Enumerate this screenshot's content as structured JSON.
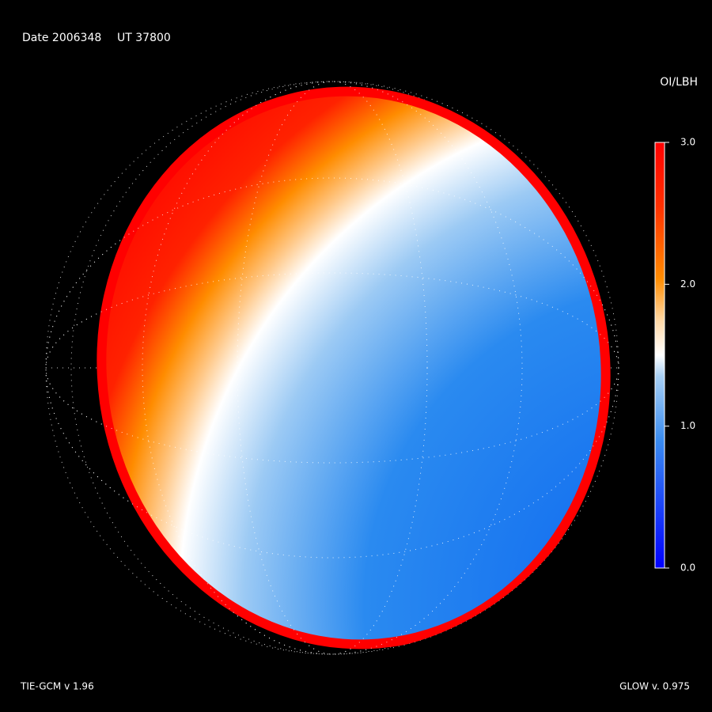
{
  "header": {
    "date": "Date 2006348",
    "ut": "UT 37800"
  },
  "colorbar": {
    "title": "OI/LBH",
    "lim": [
      0,
      3
    ],
    "ticks": [
      {
        "value": 0,
        "label": "0.0"
      },
      {
        "value": 1,
        "label": "1.0"
      },
      {
        "value": 2,
        "label": "2.0"
      },
      {
        "value": 3,
        "label": "3.0"
      }
    ]
  },
  "footer": {
    "left": "TIE-GCM v 1.96",
    "right": "GLOW v. 0.975"
  }
}
